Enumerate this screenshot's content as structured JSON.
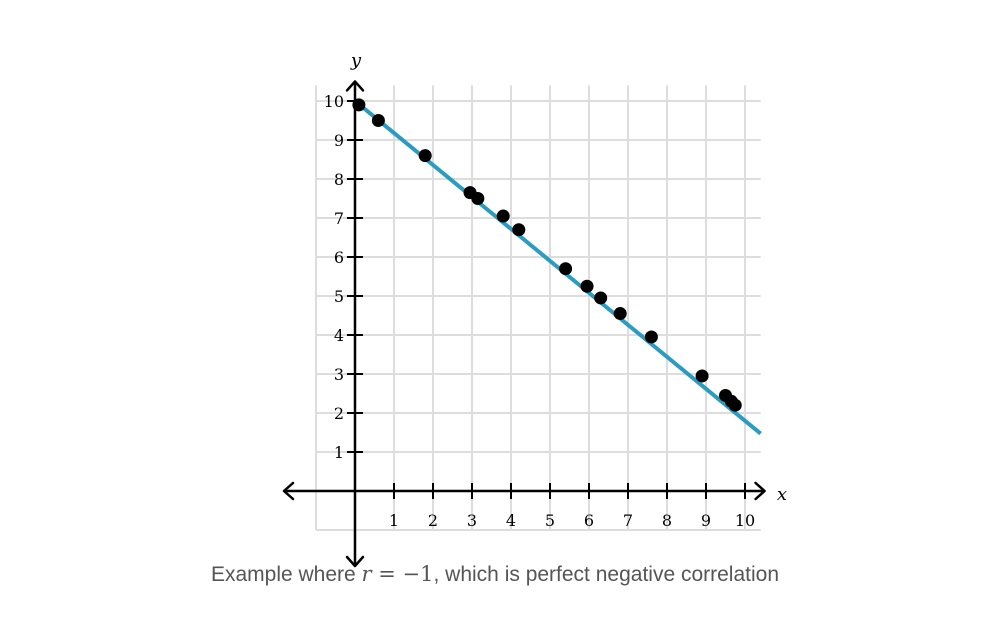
{
  "chart_data": {
    "type": "scatter",
    "xlabel": "x",
    "ylabel": "y",
    "xlim": [
      -1,
      10.4
    ],
    "ylim": [
      -1,
      10.4
    ],
    "x_ticks": [
      1,
      2,
      3,
      4,
      5,
      6,
      7,
      8,
      9,
      10
    ],
    "y_ticks": [
      1,
      2,
      3,
      4,
      5,
      6,
      7,
      8,
      9,
      10
    ],
    "grid": true,
    "points": [
      {
        "x": 0.1,
        "y": 9.9
      },
      {
        "x": 0.6,
        "y": 9.5
      },
      {
        "x": 1.8,
        "y": 8.6
      },
      {
        "x": 2.95,
        "y": 7.65
      },
      {
        "x": 3.15,
        "y": 7.5
      },
      {
        "x": 3.8,
        "y": 7.05
      },
      {
        "x": 4.2,
        "y": 6.7
      },
      {
        "x": 5.4,
        "y": 5.7
      },
      {
        "x": 5.95,
        "y": 5.25
      },
      {
        "x": 6.3,
        "y": 4.95
      },
      {
        "x": 6.8,
        "y": 4.55
      },
      {
        "x": 7.6,
        "y": 3.95
      },
      {
        "x": 8.9,
        "y": 2.95
      },
      {
        "x": 9.5,
        "y": 2.45
      },
      {
        "x": 9.65,
        "y": 2.3
      },
      {
        "x": 9.75,
        "y": 2.2
      }
    ],
    "trend_line": {
      "slope": -0.82,
      "intercept": 10,
      "x_start": 0,
      "x_end": 10.4
    },
    "point_color": "#000000",
    "line_color": "#2a9cc1",
    "grid_color": "#dddddd",
    "axis_color": "#000000"
  },
  "caption": {
    "prefix": "Example where ",
    "variable": "r",
    "equation": " = −1",
    "suffix": ", which is perfect negative correlation"
  }
}
